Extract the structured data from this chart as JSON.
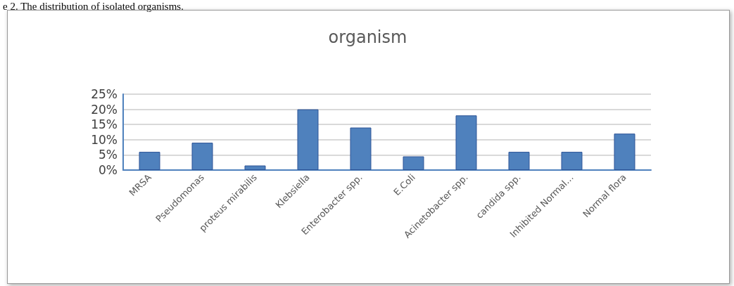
{
  "chart_data": {
    "type": "bar",
    "title": "organism",
    "annotations": [
      "e 2. The distribution of isolated organisms."
    ],
    "categories": [
      "MRSA",
      "Pseudomonas",
      "proteus mirabilis",
      "Klebsiella",
      "Enterobacter spp.",
      "E.Coli",
      "Acinetobacter spp.",
      "candida spp.",
      "Inhibited Normal…",
      "Normal flora"
    ],
    "values": [
      6,
      9,
      1.5,
      20,
      14,
      4.5,
      18,
      6,
      6,
      12
    ],
    "color": "#4f81bd",
    "ylim": [
      0,
      25
    ],
    "yticks": [
      {
        "value": 0,
        "label": "0%"
      },
      {
        "value": 5,
        "label": "5%"
      },
      {
        "value": 10,
        "label": "10%"
      },
      {
        "value": 15,
        "label": "15%"
      },
      {
        "value": 20,
        "label": "20%"
      },
      {
        "value": 25,
        "label": "25%"
      }
    ],
    "grid": "y"
  }
}
